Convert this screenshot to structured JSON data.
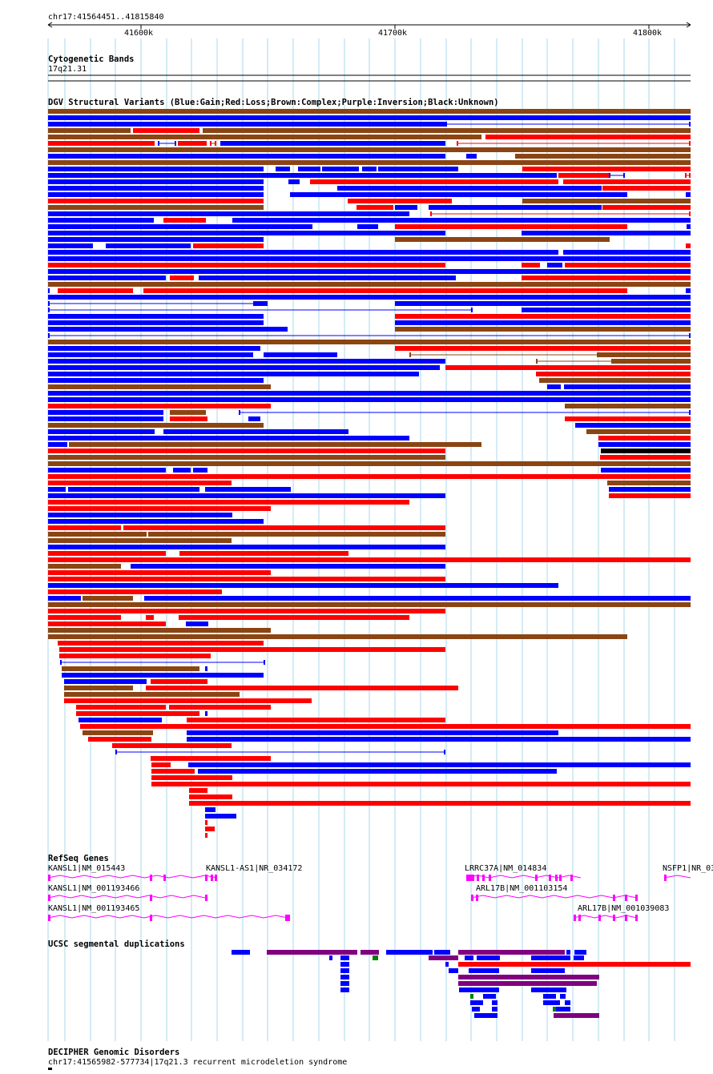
{
  "region": {
    "label": "chr17:41564451..41815840",
    "ticks": [
      "41600k",
      "41700k",
      "41800k"
    ]
  },
  "tracks": {
    "cytoband": {
      "title": "Cytogenetic Bands",
      "band": "17q21.31"
    },
    "dgv": {
      "title": "DGV Structural Variants (Blue:Gain;Red:Loss;Brown:Complex;Purple:Inversion;Black:Unknown)",
      "colors": {
        "gain": "#0000ff",
        "loss": "#ff0000",
        "complex": "#8b4513",
        "inversion": "#800080",
        "unknown": "#000000"
      }
    },
    "refseq": {
      "title": "RefSeq Genes",
      "color": "#ff00ff",
      "genes": [
        {
          "label": "KANSL1|NM_015443"
        },
        {
          "label": "KANSL1-AS1|NR_034172"
        },
        {
          "label": "LRRC37A|NM_014834"
        },
        {
          "label": "NSFP1|NR_03"
        },
        {
          "label": "KANSL1|NM_001193466"
        },
        {
          "label": "ARL17B|NM_001103154"
        },
        {
          "label": "KANSL1|NM_001193465"
        },
        {
          "label": "ARL17B|NM_001039083"
        }
      ]
    },
    "segdup": {
      "title": "UCSC segmental duplications",
      "colors": {
        "blue": "#0000ff",
        "purple": "#800080",
        "red": "#ff0000",
        "green": "#008000"
      }
    },
    "decipher": {
      "title": "DECIPHER Genomic Disorders",
      "feature_label": "chr17:41565982-577734|17q21.3 recurrent microdeletion syndrome"
    }
  }
}
